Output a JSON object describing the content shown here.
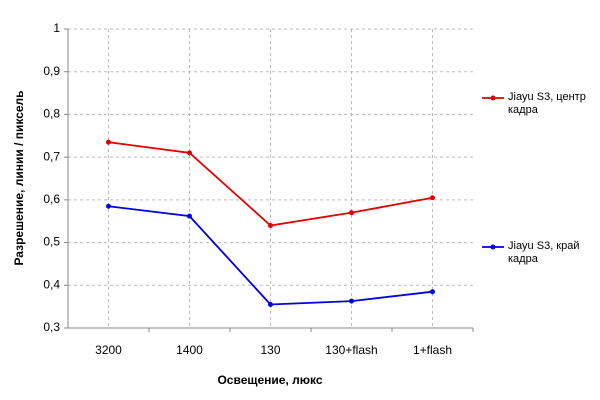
{
  "chart_data": {
    "type": "line",
    "x_label": "Освещение, люкс",
    "y_label": "Разрешение, линии / пиксель",
    "categories": [
      "3200",
      "1400",
      "130",
      "130+flash",
      "1+flash"
    ],
    "series": [
      {
        "name": "Jiayu S3, центр кадра",
        "color": "#e00000",
        "values": [
          0.735,
          0.71,
          0.54,
          0.57,
          0.605
        ]
      },
      {
        "name": "Jiayu S3, край кадра",
        "color": "#0000e0",
        "values": [
          0.585,
          0.562,
          0.355,
          0.363,
          0.385
        ]
      }
    ],
    "ylim": [
      0.3,
      1
    ],
    "yticks": [
      {
        "value": 0.3,
        "label": "0,3"
      },
      {
        "value": 0.4,
        "label": "0,4"
      },
      {
        "value": 0.5,
        "label": "0,5"
      },
      {
        "value": 0.6,
        "label": "0,6"
      },
      {
        "value": 0.7,
        "label": "0,7"
      },
      {
        "value": 0.8,
        "label": "0,8"
      },
      {
        "value": 0.9,
        "label": "0,9"
      },
      1
    ],
    "grid": true,
    "legend": "right"
  }
}
